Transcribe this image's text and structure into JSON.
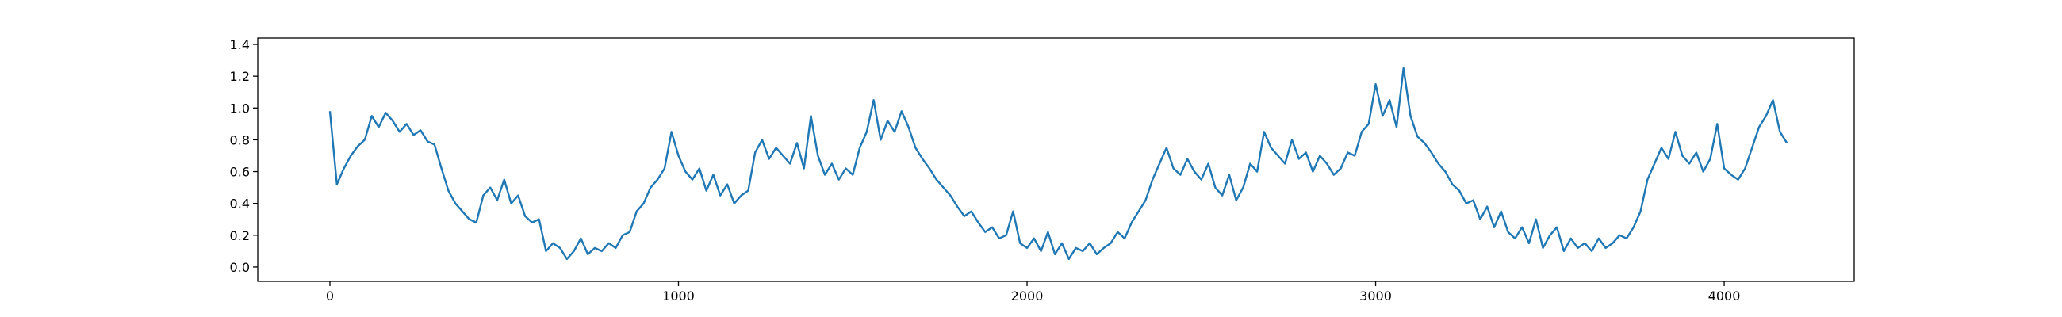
{
  "chart_data": {
    "type": "line",
    "color": "#1f77b4",
    "grid": false,
    "xlim": [
      -207,
      4373
    ],
    "ylim": [
      -0.09,
      1.44
    ],
    "xticks": [
      0,
      1000,
      2000,
      3000,
      4000
    ],
    "yticks": [
      {
        "value": 0,
        "label": "0.0"
      },
      0.2,
      0.4,
      0.6,
      0.8,
      {
        "value": 1,
        "label": "1.0"
      },
      1.2,
      1.4
    ],
    "x": [
      0,
      20,
      40,
      60,
      80,
      100,
      120,
      140,
      160,
      180,
      200,
      220,
      240,
      260,
      280,
      300,
      320,
      340,
      360,
      380,
      400,
      420,
      440,
      460,
      480,
      500,
      520,
      540,
      560,
      580,
      600,
      620,
      640,
      660,
      680,
      700,
      720,
      740,
      760,
      780,
      800,
      820,
      840,
      860,
      880,
      900,
      920,
      940,
      960,
      980,
      1000,
      1020,
      1040,
      1060,
      1080,
      1100,
      1120,
      1140,
      1160,
      1180,
      1200,
      1220,
      1240,
      1260,
      1280,
      1300,
      1320,
      1340,
      1360,
      1380,
      1400,
      1420,
      1440,
      1460,
      1480,
      1500,
      1520,
      1540,
      1560,
      1580,
      1600,
      1620,
      1640,
      1660,
      1680,
      1700,
      1720,
      1740,
      1760,
      1780,
      1800,
      1820,
      1840,
      1860,
      1880,
      1900,
      1920,
      1940,
      1960,
      1980,
      2000,
      2020,
      2040,
      2060,
      2080,
      2100,
      2120,
      2140,
      2160,
      2180,
      2200,
      2220,
      2240,
      2260,
      2280,
      2300,
      2320,
      2340,
      2360,
      2380,
      2400,
      2420,
      2440,
      2460,
      2480,
      2500,
      2520,
      2540,
      2560,
      2580,
      2600,
      2620,
      2640,
      2660,
      2680,
      2700,
      2720,
      2740,
      2760,
      2780,
      2800,
      2820,
      2840,
      2860,
      2880,
      2900,
      2920,
      2940,
      2960,
      2980,
      3000,
      3020,
      3040,
      3060,
      3080,
      3100,
      3120,
      3140,
      3160,
      3180,
      3200,
      3220,
      3240,
      3260,
      3280,
      3300,
      3320,
      3340,
      3360,
      3380,
      3400,
      3420,
      3440,
      3460,
      3480,
      3500,
      3520,
      3540,
      3560,
      3580,
      3600,
      3620,
      3640,
      3660,
      3680,
      3700,
      3720,
      3740,
      3760,
      3780,
      3800,
      3820,
      3840,
      3860,
      3880,
      3900,
      3920,
      3940,
      3960,
      3980,
      4000,
      4020,
      4040,
      4060,
      4080,
      4100,
      4120,
      4140,
      4160,
      4180
    ],
    "values": [
      0.98,
      0.52,
      0.62,
      0.7,
      0.76,
      0.8,
      0.95,
      0.88,
      0.97,
      0.92,
      0.85,
      0.9,
      0.83,
      0.86,
      0.79,
      0.77,
      0.62,
      0.48,
      0.4,
      0.35,
      0.3,
      0.28,
      0.45,
      0.5,
      0.42,
      0.55,
      0.4,
      0.45,
      0.32,
      0.28,
      0.3,
      0.1,
      0.15,
      0.12,
      0.05,
      0.1,
      0.18,
      0.08,
      0.12,
      0.1,
      0.15,
      0.12,
      0.2,
      0.22,
      0.35,
      0.4,
      0.5,
      0.55,
      0.62,
      0.85,
      0.7,
      0.6,
      0.55,
      0.62,
      0.48,
      0.58,
      0.45,
      0.52,
      0.4,
      0.45,
      0.48,
      0.72,
      0.8,
      0.68,
      0.75,
      0.7,
      0.65,
      0.78,
      0.62,
      0.95,
      0.7,
      0.58,
      0.65,
      0.55,
      0.62,
      0.58,
      0.75,
      0.85,
      1.05,
      0.8,
      0.92,
      0.85,
      0.98,
      0.88,
      0.75,
      0.68,
      0.62,
      0.55,
      0.5,
      0.45,
      0.38,
      0.32,
      0.35,
      0.28,
      0.22,
      0.25,
      0.18,
      0.2,
      0.35,
      0.15,
      0.12,
      0.18,
      0.1,
      0.22,
      0.08,
      0.15,
      0.05,
      0.12,
      0.1,
      0.15,
      0.08,
      0.12,
      0.15,
      0.22,
      0.18,
      0.28,
      0.35,
      0.42,
      0.55,
      0.65,
      0.75,
      0.62,
      0.58,
      0.68,
      0.6,
      0.55,
      0.65,
      0.5,
      0.45,
      0.58,
      0.42,
      0.5,
      0.65,
      0.6,
      0.85,
      0.75,
      0.7,
      0.65,
      0.8,
      0.68,
      0.72,
      0.6,
      0.7,
      0.65,
      0.58,
      0.62,
      0.72,
      0.7,
      0.85,
      0.9,
      1.15,
      0.95,
      1.05,
      0.88,
      1.25,
      0.95,
      0.82,
      0.78,
      0.72,
      0.65,
      0.6,
      0.52,
      0.48,
      0.4,
      0.42,
      0.3,
      0.38,
      0.25,
      0.35,
      0.22,
      0.18,
      0.25,
      0.15,
      0.3,
      0.12,
      0.2,
      0.25,
      0.1,
      0.18,
      0.12,
      0.15,
      0.1,
      0.18,
      0.12,
      0.15,
      0.2,
      0.18,
      0.25,
      0.35,
      0.55,
      0.65,
      0.75,
      0.68,
      0.85,
      0.7,
      0.65,
      0.72,
      0.6,
      0.68,
      0.9,
      0.62,
      0.58,
      0.55,
      0.62,
      0.75,
      0.88,
      0.95,
      1.05,
      0.85,
      0.78
    ]
  }
}
